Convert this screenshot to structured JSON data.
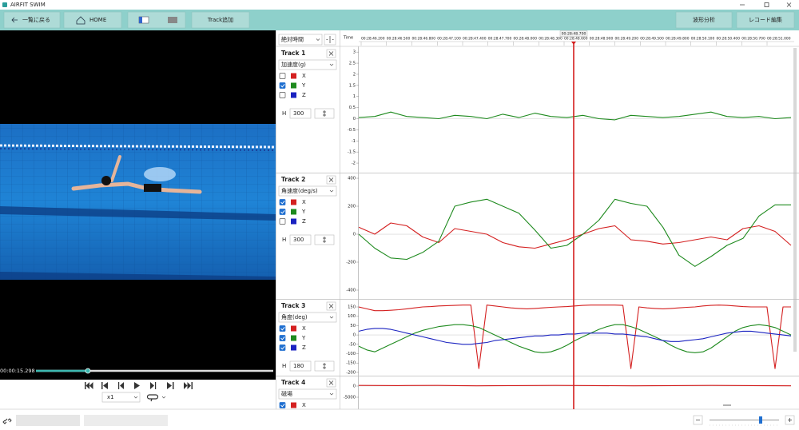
{
  "window": {
    "title": "AIRFIT SWIM"
  },
  "toolbar": {
    "back": "一覧に戻る",
    "home": "HOME",
    "add_track": "Track追加",
    "waveform": "波形分析",
    "record_edit": "レコード編集"
  },
  "player": {
    "time": "00:00:15.298",
    "speed": "x1"
  },
  "timeline": {
    "mode": "絶対時間",
    "time_label": "Time",
    "cursor": "00:28:48.700",
    "ticks": [
      "00:28:46.200",
      "00:28:46.500",
      "00:28:46.800",
      "00:28:47.100",
      "00:28:47.400",
      "00:28:47.700",
      "00:28:48.000",
      "00:28:48.300",
      "00:28:48.600",
      "00:28:48.900",
      "00:28:49.200",
      "00:28:49.500",
      "00:28:49.800",
      "00:28:50.100",
      "00:28:50.400",
      "00:28:50.700",
      "00:28:51.000"
    ]
  },
  "tracks": [
    {
      "name": "Track 1",
      "sensor": "加速度(g)",
      "height_label": "H",
      "height": 300,
      "ylim": [
        -2.25,
        3.15
      ],
      "yticks": [
        3,
        2.5,
        2,
        1.5,
        1,
        0.5,
        0,
        -0.5,
        -1,
        -1.5,
        -2
      ],
      "series": [
        {
          "name": "X",
          "color": "#d42020",
          "checked": false
        },
        {
          "name": "Y",
          "color": "#1e8a1e",
          "checked": true,
          "values": [
            0.05,
            0.1,
            0.3,
            0.1,
            0.05,
            0.0,
            0.15,
            0.1,
            0.0,
            0.2,
            0.05,
            0.25,
            0.1,
            0.05,
            0.15,
            0.0,
            -0.05,
            0.15,
            0.1,
            0.05,
            0.1,
            0.2,
            0.3,
            0.1,
            0.05,
            0.1,
            0.0,
            0.05
          ]
        },
        {
          "name": "Z",
          "color": "#1a22c0",
          "checked": false
        }
      ]
    },
    {
      "name": "Track 2",
      "sensor": "角速度(deg/s)",
      "height_label": "H",
      "height": 300,
      "ylim": [
        -440,
        423
      ],
      "yticks": [
        400,
        200,
        0,
        -200,
        -400
      ],
      "series": [
        {
          "name": "X",
          "color": "#d42020",
          "checked": true,
          "values": [
            50,
            0,
            80,
            60,
            -20,
            -60,
            40,
            20,
            0,
            -60,
            -90,
            -100,
            -70,
            -40,
            0,
            40,
            60,
            -40,
            -50,
            -70,
            -60,
            -40,
            -20,
            -40,
            40,
            60,
            20,
            -80
          ]
        },
        {
          "name": "Y",
          "color": "#1e8a1e",
          "checked": true,
          "values": [
            0,
            -100,
            -170,
            -180,
            -130,
            -50,
            200,
            230,
            250,
            200,
            150,
            30,
            -100,
            -80,
            0,
            100,
            250,
            220,
            200,
            50,
            -150,
            -230,
            -160,
            -80,
            -30,
            130,
            210,
            210
          ]
        },
        {
          "name": "Z",
          "color": "#1a22c0",
          "checked": false
        }
      ]
    },
    {
      "name": "Track 3",
      "sensor": "角度(deg)",
      "height_label": "H",
      "height": 180,
      "ylim": [
        -209,
        180
      ],
      "yticks": [
        150,
        100,
        50,
        0,
        -50,
        -100,
        -150,
        -200
      ],
      "series": [
        {
          "name": "X",
          "color": "#d42020",
          "checked": true,
          "values": [
            150,
            140,
            130,
            130,
            132,
            135,
            140,
            145,
            150,
            152,
            155,
            157,
            158,
            160,
            160,
            -180,
            160,
            155,
            150,
            145,
            142,
            140,
            142,
            145,
            148,
            150,
            152,
            155,
            158,
            160,
            160,
            160,
            160,
            158,
            -180,
            150,
            145,
            142,
            140,
            142,
            145,
            148,
            150,
            155,
            158,
            160,
            158,
            155,
            152,
            150,
            150,
            150,
            -180,
            150,
            150
          ]
        },
        {
          "name": "Y",
          "color": "#1e8a1e",
          "checked": true,
          "values": [
            -60,
            -80,
            -90,
            -70,
            -50,
            -30,
            -10,
            10,
            25,
            35,
            45,
            50,
            55,
            55,
            50,
            40,
            20,
            0,
            -20,
            -40,
            -60,
            -75,
            -90,
            -95,
            -90,
            -75,
            -55,
            -30,
            -10,
            10,
            30,
            45,
            55,
            55,
            45,
            30,
            10,
            -10,
            -30,
            -55,
            -75,
            -90,
            -95,
            -90,
            -70,
            -40,
            -10,
            20,
            40,
            50,
            55,
            50,
            40,
            20,
            0
          ]
        },
        {
          "name": "Z",
          "color": "#1a22c0",
          "checked": true,
          "values": [
            20,
            30,
            35,
            35,
            30,
            20,
            10,
            0,
            -10,
            -20,
            -30,
            -40,
            -45,
            -50,
            -50,
            -45,
            -40,
            -30,
            -25,
            -20,
            -15,
            -10,
            -5,
            -5,
            0,
            0,
            5,
            5,
            10,
            10,
            10,
            10,
            5,
            5,
            0,
            -5,
            -10,
            -20,
            -30,
            -35,
            -35,
            -30,
            -25,
            -20,
            -10,
            0,
            10,
            15,
            20,
            20,
            15,
            10,
            5,
            0,
            -5
          ]
        }
      ]
    },
    {
      "name": "Track 4",
      "sensor": "磁場",
      "ylim": [
        -9640,
        3930
      ],
      "yticks": [
        0,
        -5000
      ],
      "series": [
        {
          "name": "X",
          "color": "#d42020",
          "checked": true,
          "values": [
            300,
            200,
            300,
            100,
            200,
            300,
            200,
            100,
            200,
            300,
            200,
            100
          ]
        }
      ]
    }
  ]
}
